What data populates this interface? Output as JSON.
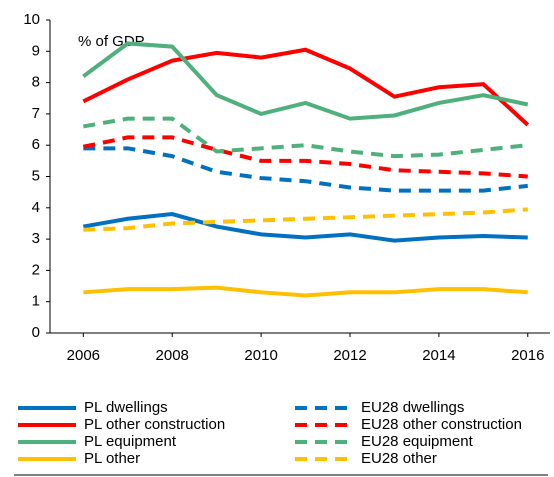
{
  "chart_data": {
    "type": "line",
    "annotation": "% of GDP",
    "x": [
      2006,
      2007,
      2008,
      2009,
      2010,
      2011,
      2012,
      2013,
      2014,
      2015,
      2016
    ],
    "xlim": [
      2005.25,
      2016.5
    ],
    "xticks": [
      2006,
      2008,
      2010,
      2012,
      2014,
      2016
    ],
    "ylim": [
      0,
      10
    ],
    "yticks": [
      0,
      1,
      2,
      3,
      4,
      5,
      6,
      7,
      8,
      9,
      10
    ],
    "grid": false,
    "legend": "bottom",
    "series": [
      {
        "name": "PL dwellings",
        "color": "#0070c0",
        "linestyle": "solid",
        "values": [
          3.4,
          3.65,
          3.8,
          3.4,
          3.15,
          3.05,
          3.15,
          2.95,
          3.05,
          3.1,
          3.05
        ]
      },
      {
        "name": "EU28 dwellings",
        "color": "#0070c0",
        "linestyle": "dashed",
        "values": [
          5.9,
          5.9,
          5.65,
          5.15,
          4.95,
          4.85,
          4.65,
          4.55,
          4.55,
          4.55,
          4.7
        ]
      },
      {
        "name": "PL other construction",
        "color": "#ff0000",
        "linestyle": "solid",
        "values": [
          7.4,
          8.1,
          8.7,
          8.95,
          8.8,
          9.05,
          8.45,
          7.55,
          7.85,
          7.95,
          6.65
        ]
      },
      {
        "name": "EU28 other construction",
        "color": "#ff0000",
        "linestyle": "dashed",
        "values": [
          5.95,
          6.25,
          6.25,
          5.85,
          5.5,
          5.5,
          5.4,
          5.2,
          5.15,
          5.1,
          5.0
        ]
      },
      {
        "name": "PL equipment",
        "color": "#4fb07e",
        "linestyle": "solid",
        "values": [
          8.2,
          9.25,
          9.15,
          7.6,
          7.0,
          7.35,
          6.85,
          6.95,
          7.35,
          7.6,
          7.3
        ]
      },
      {
        "name": "EU28 equipment",
        "color": "#4fb07e",
        "linestyle": "dashed",
        "values": [
          6.6,
          6.85,
          6.85,
          5.8,
          5.9,
          6.0,
          5.8,
          5.65,
          5.7,
          5.85,
          6.0
        ]
      },
      {
        "name": "PL other",
        "color": "#ffc000",
        "linestyle": "solid",
        "values": [
          1.3,
          1.4,
          1.4,
          1.45,
          1.3,
          1.2,
          1.3,
          1.3,
          1.4,
          1.4,
          1.3
        ]
      },
      {
        "name": "EU28 other",
        "color": "#ffc000",
        "linestyle": "dashed",
        "values": [
          3.3,
          3.35,
          3.5,
          3.55,
          3.6,
          3.65,
          3.7,
          3.75,
          3.8,
          3.85,
          3.95
        ]
      }
    ]
  }
}
